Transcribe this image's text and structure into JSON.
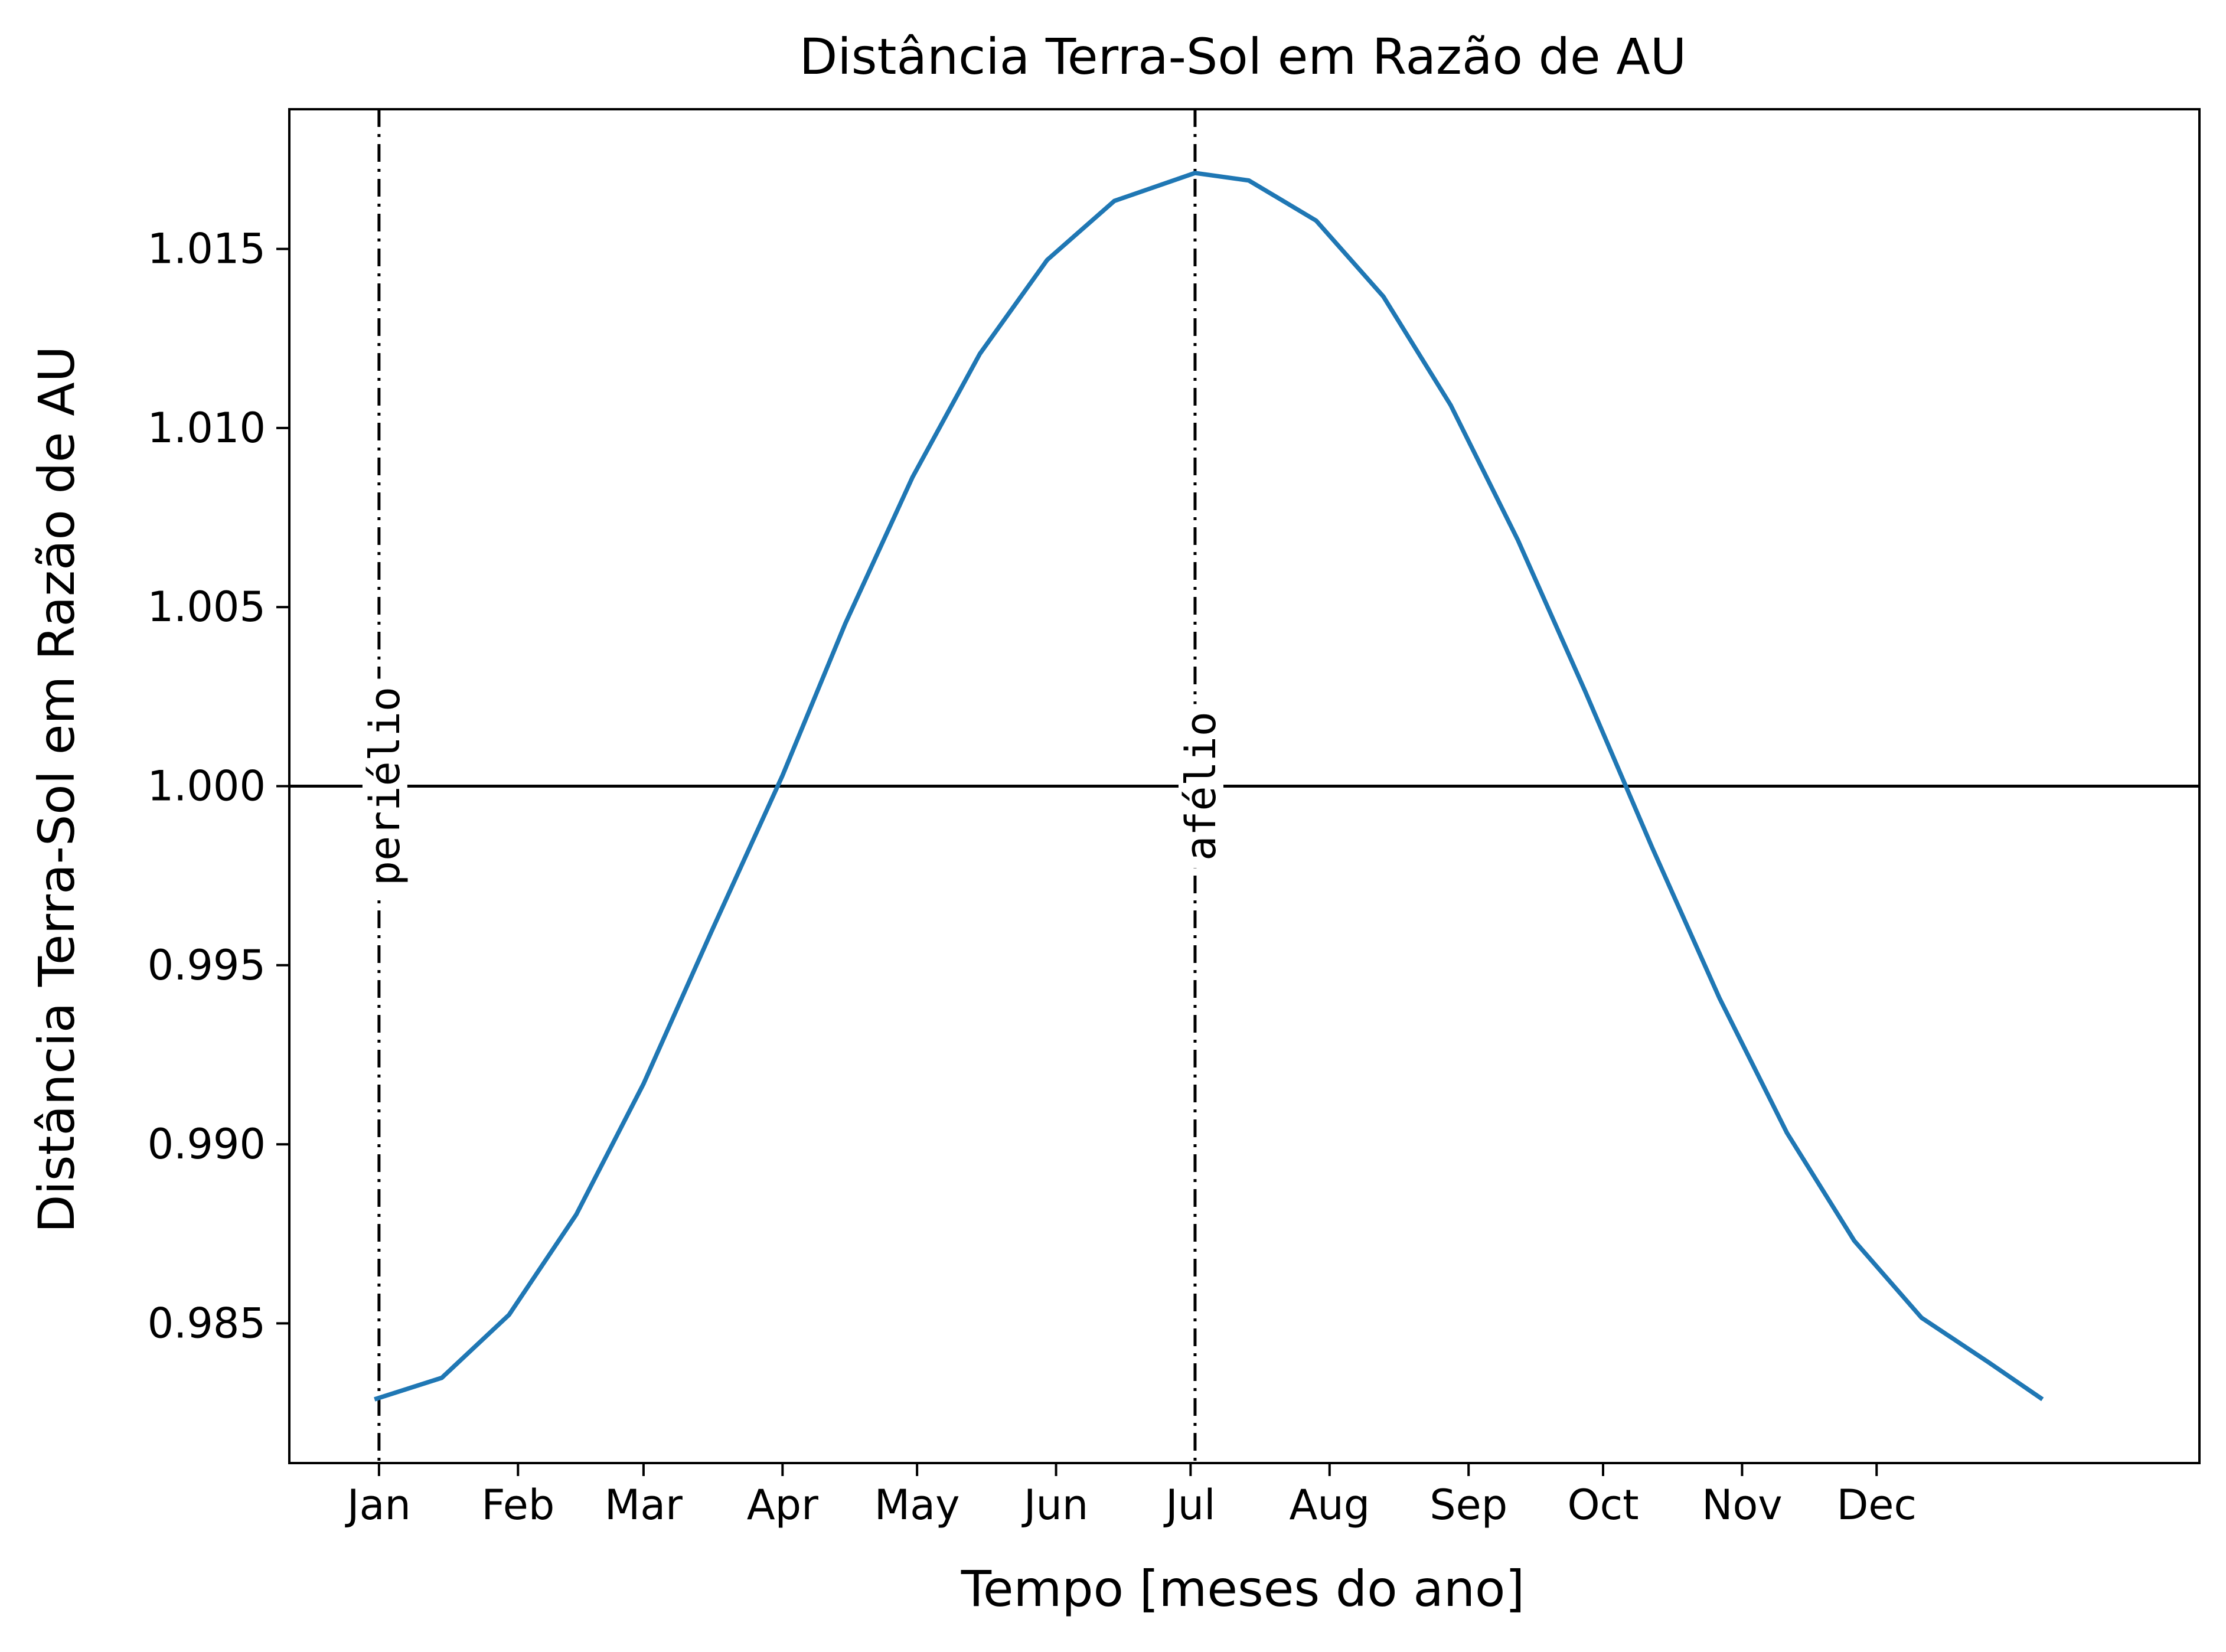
{
  "chart_data": {
    "type": "line",
    "title": "Distância Terra-Sol em Razão de AU",
    "xlabel": "Tempo [meses do ano]",
    "ylabel": "Distância Terra-Sol em Razão de AU",
    "x_tick_labels": [
      "Jan",
      "Feb",
      "Mar",
      "Apr",
      "May",
      "Jun",
      "Jul",
      "Aug",
      "Sep",
      "Oct",
      "Nov",
      "Dec"
    ],
    "x_tick_days": [
      1,
      32,
      60,
      91,
      121,
      152,
      182,
      213,
      244,
      274,
      305,
      335
    ],
    "xlim": [
      -19,
      407
    ],
    "ylim": [
      0.9811,
      1.0189
    ],
    "y_ticks": [
      0.985,
      0.99,
      0.995,
      1.0,
      1.005,
      1.01,
      1.015
    ],
    "y_tick_labels": [
      "0.985",
      "0.990",
      "0.995",
      "1.000",
      "1.005",
      "1.010",
      "1.015"
    ],
    "series": [
      {
        "color": "#1f77b4",
        "x": [
          0,
          15,
          30,
          45,
          60,
          75,
          91,
          105,
          120,
          135,
          150,
          165,
          183,
          195,
          210,
          225,
          240,
          255,
          270,
          285,
          300,
          315,
          330,
          345,
          360,
          372
        ],
        "y": [
          0.98288,
          0.98348,
          0.98524,
          0.98804,
          0.99169,
          0.9959,
          1.0003,
          1.00454,
          1.00863,
          1.01207,
          1.01469,
          1.01634,
          1.01712,
          1.01691,
          1.01579,
          1.01367,
          1.01064,
          1.00687,
          1.00265,
          0.99827,
          0.99407,
          0.99032,
          0.98731,
          0.98516,
          0.98391,
          0.98288
        ]
      }
    ],
    "reference_line": {
      "y": 1.0,
      "color": "#000000"
    },
    "annotations": [
      {
        "label": "periélio",
        "x": 1,
        "y": 1.0
      },
      {
        "label": "afélio",
        "x": 183,
        "y": 1.0
      }
    ]
  }
}
